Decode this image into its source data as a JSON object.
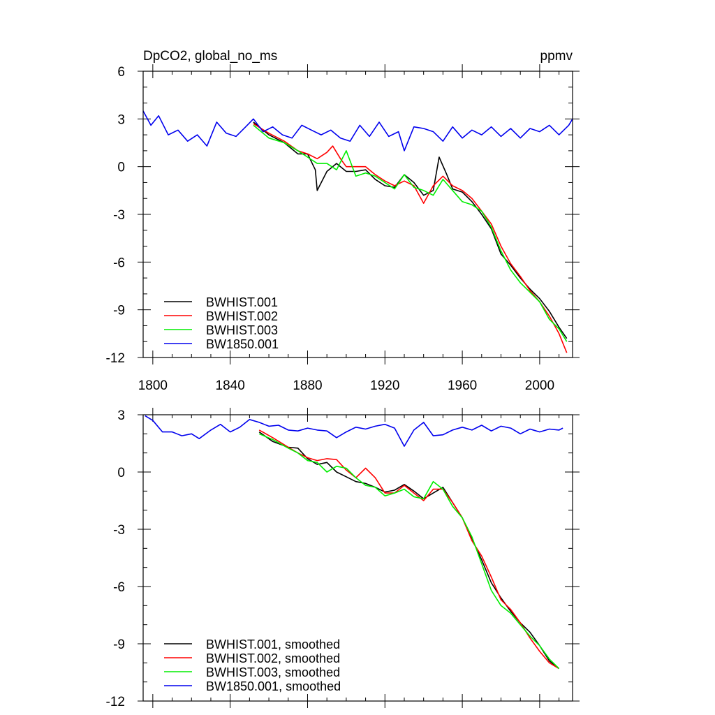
{
  "chart_data": [
    {
      "type": "line",
      "title": "DpCO2, global_no_ms",
      "units": "ppmv",
      "xlabel": "",
      "ylabel": "",
      "xlim": [
        1795,
        2017
      ],
      "ylim": [
        -12,
        6
      ],
      "xticks": [
        1800,
        1840,
        1880,
        1920,
        1960,
        2000
      ],
      "xtick_labels": [
        "1800",
        "1840",
        "1880",
        "1920",
        "1960",
        "2000"
      ],
      "yticks": [
        6,
        3,
        0,
        -3,
        -6,
        -9,
        -12
      ],
      "ytick_labels": [
        "6",
        "3",
        "0",
        "-3",
        "-6",
        "-9",
        "-12"
      ],
      "legend_position": "bottom-left",
      "series": [
        {
          "name": "BWHIST.001",
          "color": "#000000",
          "x": [
            1852,
            1860,
            1868,
            1875,
            1880,
            1884,
            1885,
            1890,
            1895,
            1900,
            1905,
            1910,
            1915,
            1920,
            1925,
            1930,
            1935,
            1940,
            1945,
            1948,
            1952,
            1955,
            1960,
            1965,
            1970,
            1975,
            1980,
            1985,
            1990,
            1995,
            2000,
            2005,
            2010,
            2014
          ],
          "y": [
            2.8,
            2.0,
            1.5,
            0.8,
            0.8,
            -0.2,
            -1.5,
            -0.3,
            0.2,
            -0.3,
            -0.3,
            -0.2,
            -0.8,
            -1.2,
            -1.3,
            -0.5,
            -1.0,
            -1.8,
            -1.5,
            0.6,
            -0.5,
            -1.4,
            -1.6,
            -2.2,
            -3.0,
            -3.9,
            -5.5,
            -6.2,
            -7.0,
            -7.7,
            -8.3,
            -9.1,
            -10.1,
            -10.8
          ]
        },
        {
          "name": "BWHIST.002",
          "color": "#ff0000",
          "x": [
            1852,
            1860,
            1868,
            1875,
            1880,
            1885,
            1890,
            1893,
            1897,
            1900,
            1905,
            1910,
            1915,
            1920,
            1925,
            1930,
            1935,
            1940,
            1945,
            1950,
            1955,
            1960,
            1965,
            1970,
            1975,
            1980,
            1985,
            1990,
            1995,
            2000,
            2005,
            2010,
            2014
          ],
          "y": [
            2.7,
            2.1,
            1.6,
            1.0,
            0.8,
            0.5,
            0.9,
            1.3,
            0.5,
            0.0,
            0.0,
            0.0,
            -0.5,
            -0.9,
            -1.2,
            -0.9,
            -1.2,
            -2.3,
            -1.2,
            -0.6,
            -1.2,
            -1.5,
            -2.0,
            -2.8,
            -3.6,
            -5.0,
            -6.1,
            -6.9,
            -7.8,
            -8.5,
            -9.4,
            -10.5,
            -11.7
          ]
        },
        {
          "name": "BWHIST.003",
          "color": "#00ee00",
          "x": [
            1852,
            1860,
            1868,
            1875,
            1880,
            1885,
            1890,
            1895,
            1900,
            1905,
            1910,
            1915,
            1920,
            1925,
            1930,
            1935,
            1940,
            1945,
            1950,
            1955,
            1960,
            1965,
            1970,
            1975,
            1980,
            1985,
            1990,
            1995,
            2000,
            2005,
            2010,
            2014
          ],
          "y": [
            2.6,
            1.8,
            1.5,
            1.0,
            0.6,
            0.2,
            0.2,
            -0.2,
            1.0,
            -0.6,
            -0.4,
            -0.6,
            -1.0,
            -1.4,
            -0.5,
            -1.3,
            -1.5,
            -1.8,
            -0.8,
            -1.5,
            -2.2,
            -2.4,
            -2.8,
            -3.8,
            -5.3,
            -6.5,
            -7.3,
            -7.9,
            -8.5,
            -9.6,
            -10.2,
            -11.0
          ]
        },
        {
          "name": "BW1850.001",
          "color": "#0000ee",
          "x": [
            1795,
            1799,
            1803,
            1808,
            1813,
            1818,
            1823,
            1828,
            1833,
            1838,
            1843,
            1848,
            1852,
            1857,
            1862,
            1867,
            1872,
            1877,
            1882,
            1887,
            1892,
            1897,
            1902,
            1907,
            1912,
            1917,
            1922,
            1927,
            1930,
            1935,
            1940,
            1945,
            1950,
            1955,
            1960,
            1965,
            1970,
            1975,
            1980,
            1985,
            1990,
            1995,
            2000,
            2005,
            2010,
            2015,
            2017
          ],
          "y": [
            3.5,
            2.6,
            3.2,
            2.0,
            2.3,
            1.6,
            2.0,
            1.3,
            2.8,
            2.1,
            1.9,
            2.5,
            3.0,
            2.2,
            2.5,
            2.0,
            1.8,
            2.6,
            2.3,
            2.0,
            2.3,
            1.8,
            1.6,
            2.6,
            1.9,
            2.8,
            1.9,
            2.2,
            1.0,
            2.5,
            2.4,
            2.2,
            1.6,
            2.5,
            1.8,
            2.3,
            2.0,
            2.5,
            1.9,
            2.4,
            1.8,
            2.4,
            2.2,
            2.6,
            2.0,
            2.6,
            3.0
          ]
        }
      ]
    },
    {
      "type": "line",
      "title": "",
      "xlabel": "",
      "ylabel": "",
      "xlim": [
        1795,
        2017
      ],
      "ylim": [
        -12,
        3
      ],
      "xticks": [
        1800,
        1840,
        1880,
        1920,
        1960,
        2000
      ],
      "yticks": [
        3,
        0,
        -3,
        -6,
        -9,
        -12
      ],
      "ytick_labels": [
        "3",
        "0",
        "-3",
        "-6",
        "-9",
        "-12"
      ],
      "legend_position": "bottom-left",
      "series": [
        {
          "name": "BWHIST.001, smoothed",
          "color": "#000000",
          "x": [
            1855,
            1862,
            1870,
            1875,
            1880,
            1885,
            1890,
            1895,
            1900,
            1905,
            1910,
            1915,
            1920,
            1925,
            1930,
            1935,
            1940,
            1945,
            1950,
            1955,
            1960,
            1965,
            1970,
            1975,
            1980,
            1985,
            1990,
            1995,
            2000,
            2005,
            2010
          ],
          "y": [
            2.1,
            1.6,
            1.3,
            1.25,
            0.7,
            0.4,
            0.5,
            0.0,
            -0.25,
            -0.5,
            -0.6,
            -0.8,
            -1.05,
            -0.95,
            -0.65,
            -1.0,
            -1.4,
            -1.1,
            -0.8,
            -1.6,
            -2.4,
            -3.5,
            -4.6,
            -5.8,
            -6.6,
            -7.3,
            -7.9,
            -8.4,
            -9.1,
            -9.9,
            -10.3
          ]
        },
        {
          "name": "BWHIST.002, smoothed",
          "color": "#ff0000",
          "x": [
            1855,
            1862,
            1870,
            1875,
            1880,
            1885,
            1890,
            1895,
            1900,
            1905,
            1910,
            1915,
            1920,
            1925,
            1930,
            1935,
            1940,
            1945,
            1950,
            1955,
            1960,
            1965,
            1970,
            1975,
            1980,
            1985,
            1990,
            1995,
            2000,
            2005,
            2010
          ],
          "y": [
            2.2,
            1.8,
            1.3,
            1.0,
            0.75,
            0.6,
            0.7,
            0.65,
            0.1,
            -0.3,
            0.2,
            -0.3,
            -1.1,
            -1.1,
            -0.7,
            -1.1,
            -1.5,
            -0.9,
            -0.9,
            -1.6,
            -2.4,
            -3.6,
            -4.4,
            -5.5,
            -6.7,
            -7.2,
            -7.9,
            -8.7,
            -9.4,
            -10.0,
            -10.3
          ]
        },
        {
          "name": "BWHIST.003, smoothed",
          "color": "#00ee00",
          "x": [
            1855,
            1862,
            1870,
            1875,
            1880,
            1885,
            1890,
            1895,
            1900,
            1905,
            1910,
            1915,
            1920,
            1925,
            1930,
            1935,
            1940,
            1945,
            1950,
            1955,
            1960,
            1965,
            1970,
            1975,
            1980,
            1985,
            1990,
            1995,
            2000,
            2005,
            2010
          ],
          "y": [
            2.0,
            1.7,
            1.25,
            1.0,
            0.6,
            0.5,
            0.0,
            0.3,
            0.2,
            -0.3,
            -0.7,
            -0.8,
            -1.25,
            -1.1,
            -0.9,
            -1.3,
            -1.4,
            -0.5,
            -0.9,
            -1.8,
            -2.4,
            -3.4,
            -4.8,
            -6.2,
            -7.0,
            -7.4,
            -8.0,
            -8.6,
            -9.1,
            -9.8,
            -10.3
          ]
        },
        {
          "name": "BW1850.001, smoothed",
          "color": "#0000ee",
          "x": [
            1796,
            1800,
            1805,
            1810,
            1815,
            1820,
            1824,
            1830,
            1835,
            1840,
            1845,
            1850,
            1855,
            1860,
            1865,
            1870,
            1875,
            1880,
            1885,
            1890,
            1895,
            1900,
            1905,
            1910,
            1915,
            1920,
            1925,
            1930,
            1935,
            1940,
            1945,
            1950,
            1955,
            1960,
            1965,
            1970,
            1975,
            1980,
            1985,
            1990,
            1995,
            2000,
            2005,
            2010,
            2012
          ],
          "y": [
            2.95,
            2.7,
            2.1,
            2.1,
            1.9,
            2.0,
            1.75,
            2.2,
            2.5,
            2.1,
            2.35,
            2.75,
            2.6,
            2.4,
            2.45,
            2.2,
            2.15,
            2.3,
            2.2,
            2.15,
            1.8,
            2.1,
            2.35,
            2.25,
            2.4,
            2.5,
            2.3,
            1.35,
            2.2,
            2.6,
            1.9,
            1.95,
            2.2,
            2.35,
            2.2,
            2.45,
            2.15,
            2.4,
            2.3,
            2.0,
            2.25,
            2.1,
            2.25,
            2.2,
            2.3
          ]
        }
      ]
    }
  ]
}
